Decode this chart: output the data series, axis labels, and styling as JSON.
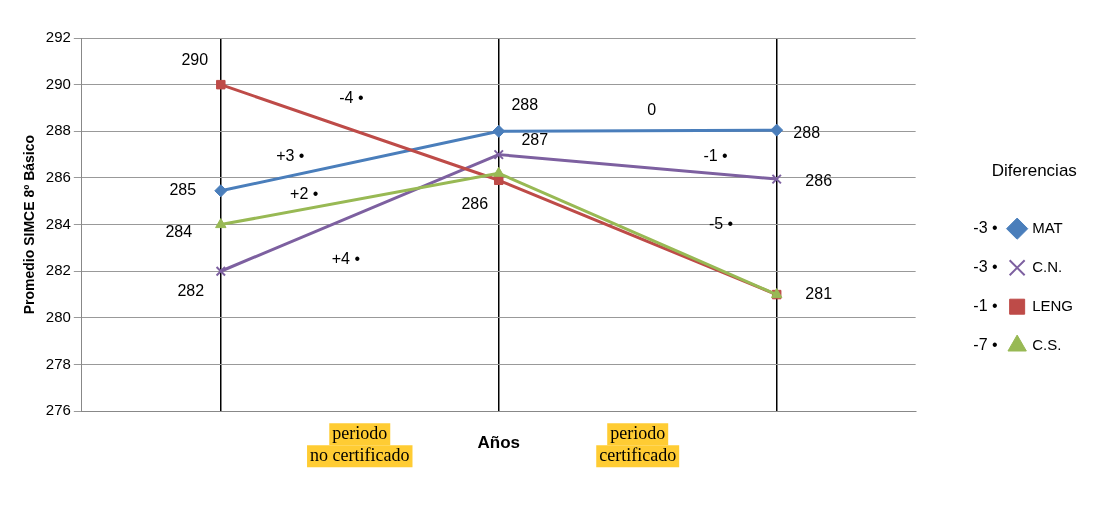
{
  "chart_data": {
    "type": "line",
    "categories": [
      null,
      null,
      null
    ],
    "xlabel": "Años",
    "ylabel": "Promedio SIMCE 8º Básico",
    "legend_title": "Diferencias",
    "ylim": [
      276,
      292
    ],
    "yticks": [
      276,
      278,
      280,
      282,
      284,
      286,
      288,
      290,
      292
    ],
    "grid": true,
    "legend": "right",
    "series": [
      {
        "name": "MAT",
        "color": "#4a7ebb",
        "marker": "diamond",
        "values": [
          285.45,
          288,
          288.05
        ],
        "value_labels": [
          "285",
          "288",
          "288"
        ]
      },
      {
        "name": "C.N.",
        "color": "#7d60a0",
        "marker": "cross",
        "values": [
          282,
          287,
          285.95
        ],
        "value_labels": [
          "282",
          "287",
          "286"
        ]
      },
      {
        "name": "LENG",
        "color": "#be4b48",
        "marker": "square",
        "values": [
          290,
          285.9,
          281
        ],
        "value_labels": [
          "290",
          "286",
          "281"
        ]
      },
      {
        "name": "C.S.",
        "color": "#98b954",
        "marker": "triangle",
        "values": [
          284,
          286.2,
          281
        ],
        "value_labels": [
          "284",
          null,
          null
        ]
      }
    ],
    "annotations": [
      "+3 •",
      "-4 •",
      "+2 •",
      "+4 •",
      "0",
      "-1 •",
      "-5 •",
      "-3 •",
      "-3 •",
      "-1 •",
      "-7 •",
      "periodo no certificado",
      "periodo certificado"
    ]
  }
}
